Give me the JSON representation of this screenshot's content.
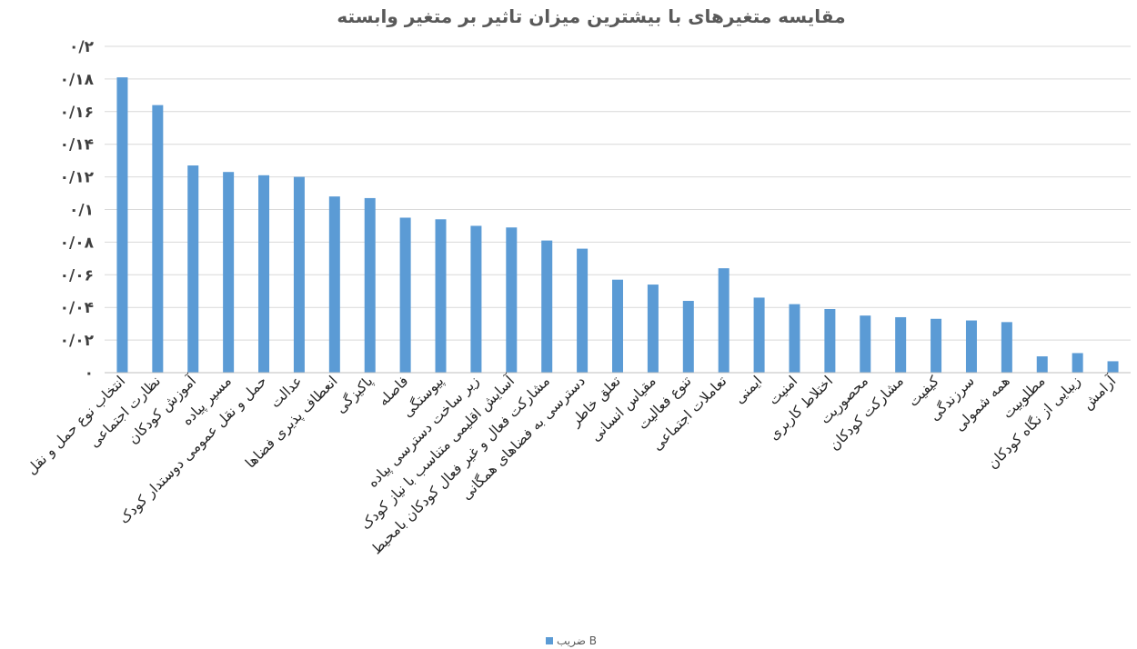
{
  "chart_data": {
    "type": "bar",
    "title": "مقایسه متغیرهای با بیشترین میزان تاثیر بر متغیر وابسته",
    "xlabel": "",
    "ylabel": "",
    "ylim": [
      0,
      0.2
    ],
    "yticks": [
      0,
      0.02,
      0.04,
      0.06,
      0.08,
      0.1,
      0.12,
      0.14,
      0.16,
      0.18,
      0.2
    ],
    "ytick_labels": [
      "۰",
      "۰/۰۲",
      "۰/۰۴",
      "۰/۰۶",
      "۰/۰۸",
      "۰/۱",
      "۰/۱۲",
      "۰/۱۴",
      "۰/۱۶",
      "۰/۱۸",
      "۰/۲"
    ],
    "grid": true,
    "legend": "bottom",
    "color": "#5b9bd5",
    "categories": [
      "انتخاب نوع حمل و نقل",
      "نظارت اجتماعی",
      "آموزش کودکان",
      "مسیر پیاده",
      "حمل و نقل عمومی دوستدار کودک",
      "عدالت",
      "انعطاف پذیری فضاها",
      "پاکیزگی",
      "فاصله",
      "پیوستگی",
      "زیر ساخت دسترسی پیاده",
      "آسایش اقلیمی متناسب با نیاز کودک",
      "مشارکت فعال و غیر فعال کودکان بامحیط",
      "دسترسی به فضاهای همگانی",
      "تعلق خاطر",
      "مقیاس انسانی",
      "تنوع فعالیت",
      "تعاملات اجتماعی",
      "ایمنی",
      "امنیت",
      "اختلاط کاربری",
      "محصوریت",
      "مشارکت کودکان",
      "کیفیت",
      "سرزندگی",
      "همه شمولی",
      "مطلوبیت",
      "زیبایی از نگاه کودکان",
      "آرامش"
    ],
    "series": [
      {
        "name": "ضریب B",
        "values": [
          0.181,
          0.164,
          0.127,
          0.123,
          0.121,
          0.12,
          0.108,
          0.107,
          0.095,
          0.094,
          0.09,
          0.089,
          0.081,
          0.076,
          0.057,
          0.054,
          0.044,
          0.064,
          0.046,
          0.042,
          0.039,
          0.035,
          0.034,
          0.033,
          0.032,
          0.031,
          0.01,
          0.012,
          0.007
        ]
      }
    ]
  }
}
